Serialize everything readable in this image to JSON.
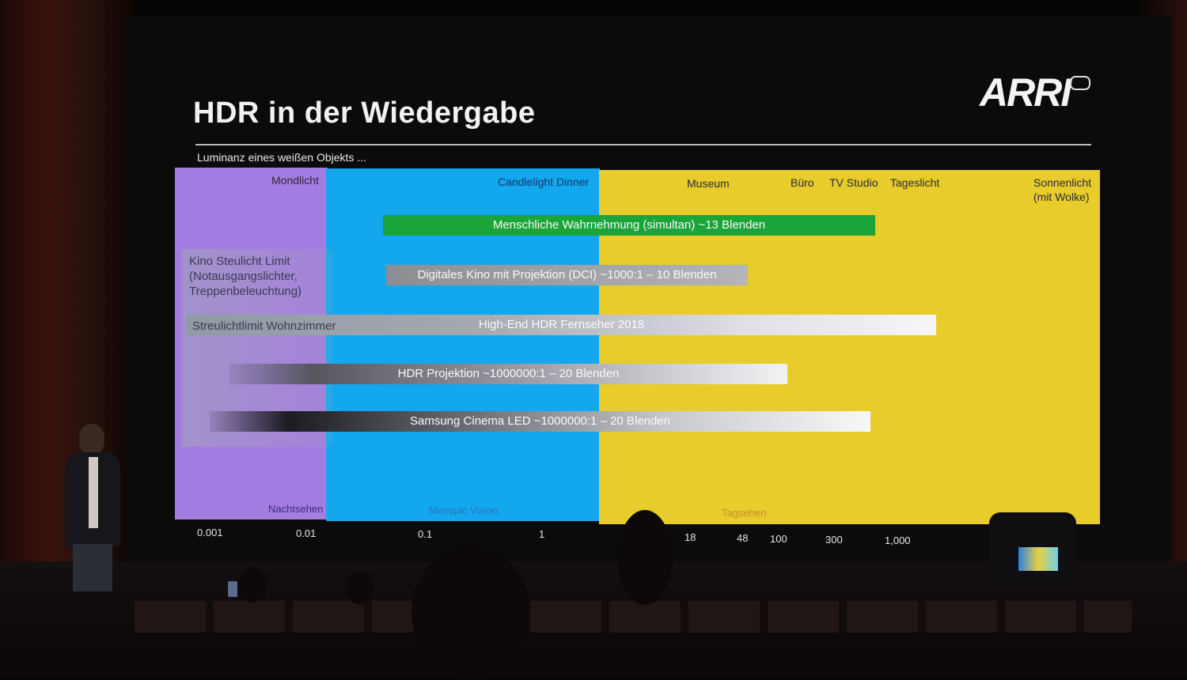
{
  "slide": {
    "title": "HDR in der Wiedergabe",
    "logo": "ARRI",
    "subtitle": "Luminanz eines weißen Objekts ..."
  },
  "light_sources": [
    "Mondlicht",
    "Candlelight Dinner",
    "Museum",
    "Büro",
    "TV Studio",
    "Tageslicht",
    "Sonnenlicht",
    "(mit Wolke)"
  ],
  "bars": {
    "perception": "Menschliche Wahrnehmung (simultan) ~13 Blenden",
    "dci": "Digitales Kino mit Projektion (DCI)   ~1000:1 – 10 Blenden",
    "hdr_tv": "High-End HDR Fernseher 2018",
    "hdr_projection": "HDR Projektion   ~1000000:1 – 20 Blenden",
    "cinema_led": "Samsung Cinema LED   ~1000000:1 – 20 Blenden"
  },
  "left_notes": {
    "kino_line1": "Kino Steulicht Limit",
    "kino_line2": "(Notausgangslichter,",
    "kino_line3": "Treppenbeleuchtung)",
    "wohnzimmer": "Streulichtlimit Wohnzimmer"
  },
  "zones": {
    "night": "Nachtsehen",
    "mesopic": "Mesopic Vision",
    "day": "Tagsehen"
  },
  "ticks": [
    "0.001",
    "0.01",
    "0.1",
    "1",
    "18",
    "48",
    "100",
    "300",
    "1,000"
  ],
  "colors": {
    "scotopic": "#a57ce2",
    "mesopic": "#13a7ee",
    "photopic": "#e7cc2b",
    "perception_bar": "#1aa43a"
  }
}
